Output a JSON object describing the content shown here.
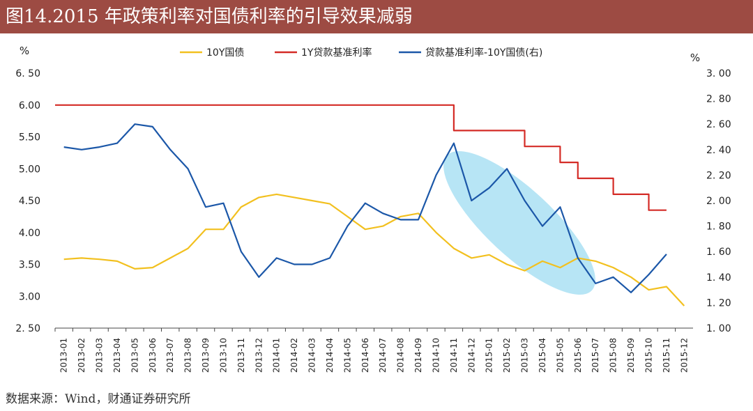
{
  "header": {
    "title": "图14.2015 年政策利率对国债利率的引导效果减弱"
  },
  "footer": {
    "source": "数据来源：Wind，财通证券研究所"
  },
  "colors": {
    "title_bg": "#9d4b43",
    "series_10y": "#f2c01f",
    "series_1y": "#d42b26",
    "series_spread": "#1b57a8",
    "highlight": "#9fdcf2"
  },
  "chart_data": {
    "type": "line",
    "title": "",
    "xlabel": "",
    "ylabel_left": "%",
    "ylabel_right": "%",
    "ylim_left": [
      2.5,
      6.5
    ],
    "ylim_right": [
      1.0,
      3.0
    ],
    "yticks_left": [
      "6. 50",
      "6.00",
      "5.50",
      "5.00",
      "4.50",
      "4.00",
      "3.50",
      "3.00",
      "2. 50"
    ],
    "yticks_right": [
      "3. 00",
      "2. 80",
      "2. 60",
      "2. 40",
      "2. 20",
      "2. 00",
      "1. 80",
      "1. 60",
      "1. 40",
      "1. 20",
      "1. 00"
    ],
    "x_ticks": [
      "2013-01",
      "2013-02",
      "2013-03",
      "2013-04",
      "2013-05",
      "2013-06",
      "2013-07",
      "2013-08",
      "2013-09",
      "2013-10",
      "2013-11",
      "2013-12",
      "2014-01",
      "2014-02",
      "2014-03",
      "2014-04",
      "2014-05",
      "2014-06",
      "2014-07",
      "2014-08",
      "2014-09",
      "2014-10",
      "2014-11",
      "2014-12",
      "2015-01",
      "2015-02",
      "2015-03",
      "2015-04",
      "2015-05",
      "2015-06",
      "2015-07",
      "2015-08",
      "2015-09",
      "2015-10",
      "2015-11",
      "2015-12"
    ],
    "legend_position": "top",
    "grid": false,
    "series": [
      {
        "name": "10Y国债",
        "axis": "left",
        "points": [
          [
            "2013-01",
            3.58
          ],
          [
            "2013-02",
            3.6
          ],
          [
            "2013-03",
            3.58
          ],
          [
            "2013-04",
            3.55
          ],
          [
            "2013-05",
            3.43
          ],
          [
            "2013-06",
            3.45
          ],
          [
            "2013-07",
            3.6
          ],
          [
            "2013-08",
            3.75
          ],
          [
            "2013-09",
            4.05
          ],
          [
            "2013-10",
            4.05
          ],
          [
            "2013-11",
            4.4
          ],
          [
            "2013-12",
            4.55
          ],
          [
            "2014-01",
            4.6
          ],
          [
            "2014-02",
            4.55
          ],
          [
            "2014-03",
            4.5
          ],
          [
            "2014-04",
            4.45
          ],
          [
            "2014-05",
            4.25
          ],
          [
            "2014-06",
            4.05
          ],
          [
            "2014-07",
            4.1
          ],
          [
            "2014-08",
            4.25
          ],
          [
            "2014-09",
            4.3
          ],
          [
            "2014-10",
            4.0
          ],
          [
            "2014-11",
            3.75
          ],
          [
            "2014-12",
            3.6
          ],
          [
            "2015-01",
            3.65
          ],
          [
            "2015-02",
            3.5
          ],
          [
            "2015-03",
            3.4
          ],
          [
            "2015-04",
            3.55
          ],
          [
            "2015-05",
            3.45
          ],
          [
            "2015-06",
            3.6
          ],
          [
            "2015-07",
            3.55
          ],
          [
            "2015-08",
            3.45
          ],
          [
            "2015-09",
            3.3
          ],
          [
            "2015-10",
            3.1
          ],
          [
            "2015-11",
            3.15
          ],
          [
            "2015-12",
            2.85
          ]
        ]
      },
      {
        "name": "1Y贷款基准利率",
        "axis": "left",
        "points": [
          [
            "2013-01",
            6.0
          ],
          [
            "2014-11",
            6.0
          ],
          [
            "2014-11",
            5.6
          ],
          [
            "2015-03",
            5.6
          ],
          [
            "2015-03",
            5.35
          ],
          [
            "2015-05",
            5.35
          ],
          [
            "2015-05",
            5.1
          ],
          [
            "2015-06",
            5.1
          ],
          [
            "2015-06",
            4.85
          ],
          [
            "2015-08",
            4.85
          ],
          [
            "2015-08",
            4.6
          ],
          [
            "2015-10",
            4.6
          ],
          [
            "2015-10",
            4.35
          ],
          [
            "2015-11",
            4.35
          ]
        ]
      },
      {
        "name": "贷款基准利率-10Y国债(右)",
        "axis": "right",
        "points": [
          [
            "2013-01",
            2.42
          ],
          [
            "2013-02",
            2.4
          ],
          [
            "2013-03",
            2.42
          ],
          [
            "2013-04",
            2.45
          ],
          [
            "2013-05",
            2.6
          ],
          [
            "2013-06",
            2.58
          ],
          [
            "2013-07",
            2.4
          ],
          [
            "2013-08",
            2.25
          ],
          [
            "2013-09",
            1.95
          ],
          [
            "2013-10",
            1.98
          ],
          [
            "2013-11",
            1.6
          ],
          [
            "2013-12",
            1.4
          ],
          [
            "2014-01",
            1.55
          ],
          [
            "2014-02",
            1.5
          ],
          [
            "2014-03",
            1.5
          ],
          [
            "2014-04",
            1.55
          ],
          [
            "2014-05",
            1.8
          ],
          [
            "2014-06",
            1.98
          ],
          [
            "2014-07",
            1.9
          ],
          [
            "2014-08",
            1.85
          ],
          [
            "2014-09",
            1.85
          ],
          [
            "2014-10",
            2.2
          ],
          [
            "2014-11",
            2.45
          ],
          [
            "2014-12",
            2.0
          ],
          [
            "2015-01",
            2.1
          ],
          [
            "2015-02",
            2.25
          ],
          [
            "2015-03",
            2.0
          ],
          [
            "2015-04",
            1.8
          ],
          [
            "2015-05",
            1.95
          ],
          [
            "2015-06",
            1.55
          ],
          [
            "2015-07",
            1.35
          ],
          [
            "2015-08",
            1.4
          ],
          [
            "2015-09",
            1.28
          ],
          [
            "2015-10",
            1.42
          ],
          [
            "2015-11",
            1.58
          ]
        ]
      }
    ]
  }
}
